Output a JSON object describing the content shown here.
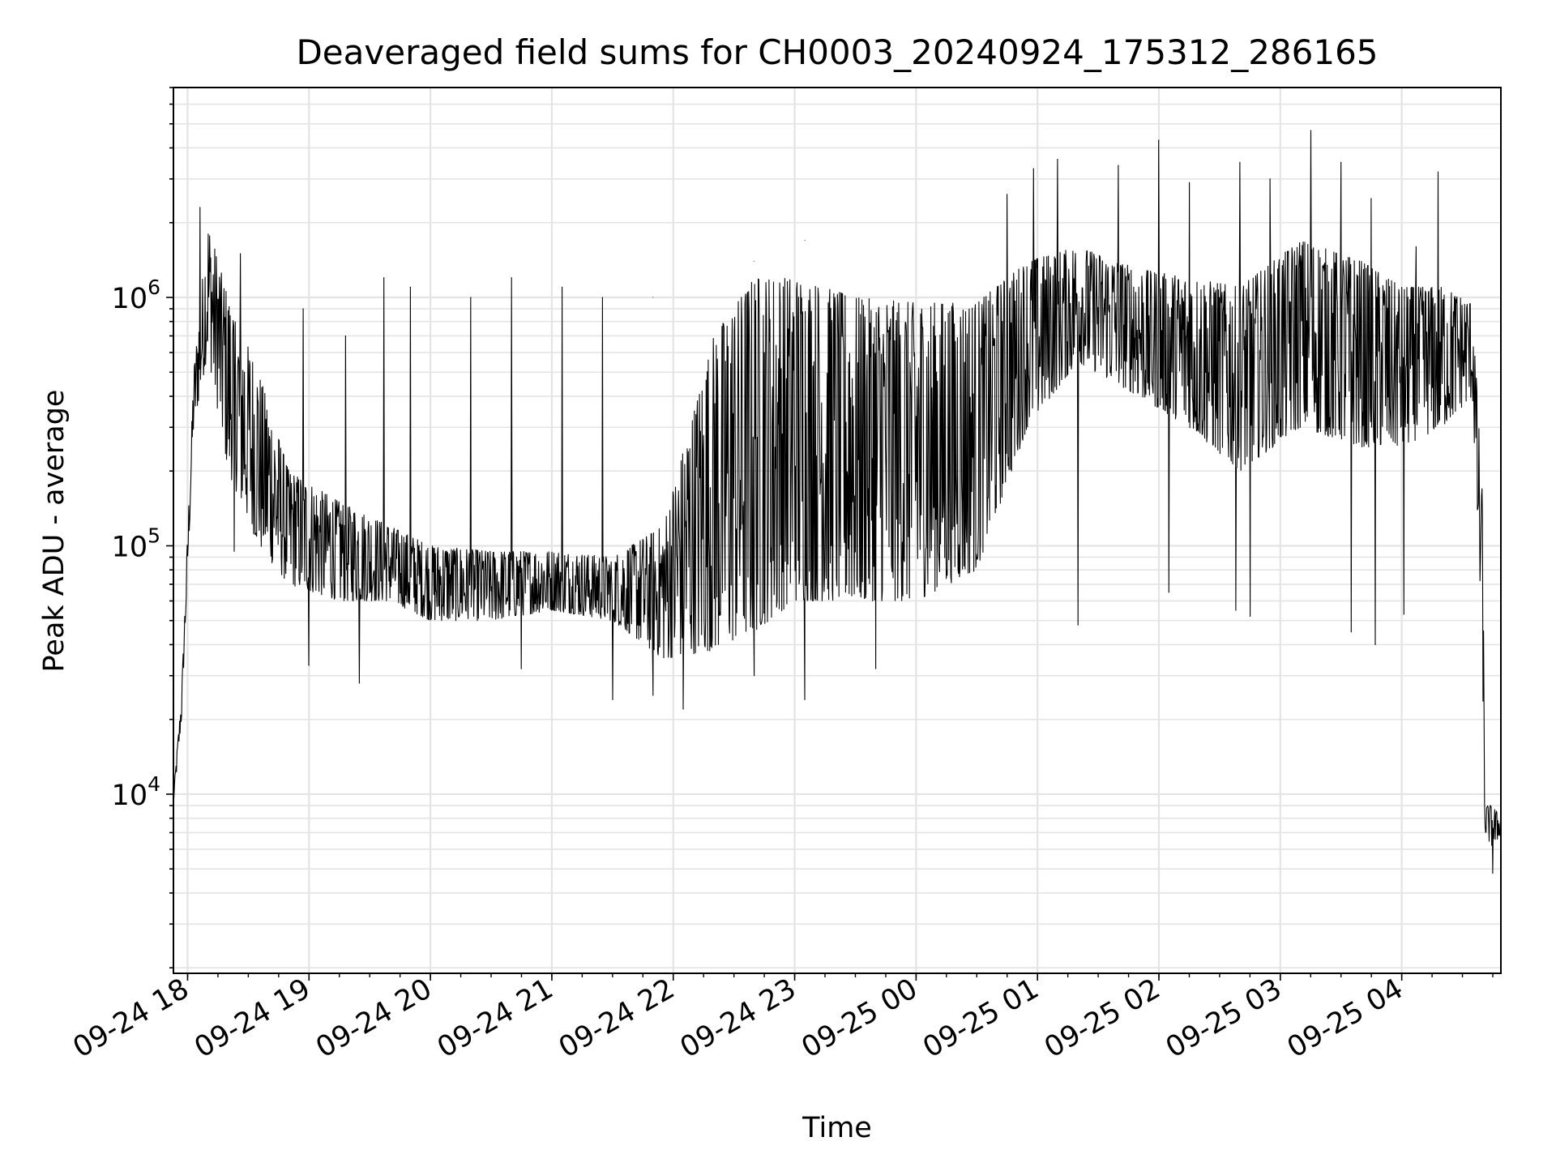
{
  "chart_data": {
    "type": "line",
    "title": "Deaveraged field sums for CH0003_20240924_175312_286165",
    "xlabel": "Time",
    "ylabel": "Peak ADU - average",
    "yscale": "log",
    "grid": true,
    "grid_color": "#e4e4e4",
    "line_color": "#000000",
    "xlim": [
      "2024-09-24 17:53",
      "2024-09-25 04:49"
    ],
    "ylim": [
      1900,
      7000000
    ],
    "x_ticks": [
      "09-24 18",
      "09-24 19",
      "09-24 20",
      "09-24 21",
      "09-24 22",
      "09-24 23",
      "09-25 00",
      "09-25 01",
      "09-25 02",
      "09-25 03",
      "09-25 04"
    ],
    "x_tick_times": [
      "2024-09-24 18:00",
      "2024-09-24 19:00",
      "2024-09-24 20:00",
      "2024-09-24 21:00",
      "2024-09-24 22:00",
      "2024-09-24 23:00",
      "2024-09-25 00:00",
      "2024-09-25 01:00",
      "2024-09-25 02:00",
      "2024-09-25 03:00",
      "2024-09-25 04:00"
    ],
    "y_ticks": [
      {
        "value": 10000,
        "base": "10",
        "exp": "4"
      },
      {
        "value": 100000,
        "base": "10",
        "exp": "5"
      },
      {
        "value": 1000000,
        "base": "10",
        "exp": "6"
      }
    ],
    "envelope": {
      "x": [
        "2024-09-24 17:53",
        "2024-09-24 17:57",
        "2024-09-24 18:03",
        "2024-09-24 18:10",
        "2024-09-24 18:20",
        "2024-09-24 18:35",
        "2024-09-24 18:50",
        "2024-09-24 19:15",
        "2024-09-24 19:40",
        "2024-09-24 20:00",
        "2024-09-24 20:30",
        "2024-09-24 21:00",
        "2024-09-24 21:30",
        "2024-09-24 21:55",
        "2024-09-24 22:20",
        "2024-09-24 22:40",
        "2024-09-24 23:00",
        "2024-09-24 23:30",
        "2024-09-25 00:00",
        "2024-09-25 00:30",
        "2024-09-25 00:55",
        "2024-09-25 01:20",
        "2024-09-25 01:50",
        "2024-09-25 02:15",
        "2024-09-25 02:40",
        "2024-09-25 03:10",
        "2024-09-25 03:40",
        "2024-09-25 04:00",
        "2024-09-25 04:20",
        "2024-09-25 04:35",
        "2024-09-25 04:40",
        "2024-09-25 04:41",
        "2024-09-25 04:45",
        "2024-09-25 04:49"
      ],
      "low": [
        9000,
        20000,
        300000,
        600000,
        200000,
        100000,
        70000,
        60000,
        60000,
        50000,
        50000,
        55000,
        50000,
        35000,
        38000,
        45000,
        60000,
        60000,
        60000,
        80000,
        300000,
        550000,
        400000,
        300000,
        200000,
        300000,
        250000,
        250000,
        300000,
        400000,
        30000,
        7000,
        6000,
        7000
      ],
      "high": [
        10000,
        25000,
        500000,
        2000000,
        1000000,
        500000,
        200000,
        150000,
        120000,
        100000,
        95000,
        95000,
        90000,
        120000,
        700000,
        1200000,
        1200000,
        1000000,
        950000,
        950000,
        1400000,
        1600000,
        1300000,
        1200000,
        1100000,
        1700000,
        1400000,
        1100000,
        1100000,
        950000,
        150000,
        9000,
        9000,
        8000
      ]
    },
    "spikes": [
      {
        "x": "2024-09-24 18:06",
        "y": 2300000
      },
      {
        "x": "2024-09-24 18:26",
        "y": 1500000
      },
      {
        "x": "2024-09-24 18:57",
        "y": 900000
      },
      {
        "x": "2024-09-24 19:18",
        "y": 700000
      },
      {
        "x": "2024-09-24 19:37",
        "y": 1200000
      },
      {
        "x": "2024-09-24 19:50",
        "y": 1100000
      },
      {
        "x": "2024-09-24 20:20",
        "y": 1000000
      },
      {
        "x": "2024-09-24 20:40",
        "y": 1200000
      },
      {
        "x": "2024-09-24 21:05",
        "y": 1100000
      },
      {
        "x": "2024-09-24 21:25",
        "y": 1000000
      },
      {
        "x": "2024-09-24 21:50",
        "y": 1000000
      },
      {
        "x": "2024-09-24 22:40",
        "y": 1400000
      },
      {
        "x": "2024-09-24 23:05",
        "y": 1700000
      },
      {
        "x": "2024-09-25 00:45",
        "y": 2600000
      },
      {
        "x": "2024-09-25 00:58",
        "y": 3300000
      },
      {
        "x": "2024-09-25 01:10",
        "y": 3600000
      },
      {
        "x": "2024-09-25 01:40",
        "y": 3400000
      },
      {
        "x": "2024-09-25 02:00",
        "y": 4300000
      },
      {
        "x": "2024-09-25 02:15",
        "y": 2900000
      },
      {
        "x": "2024-09-25 02:40",
        "y": 3500000
      },
      {
        "x": "2024-09-25 02:55",
        "y": 3000000
      },
      {
        "x": "2024-09-25 03:15",
        "y": 4700000
      },
      {
        "x": "2024-09-25 03:30",
        "y": 3500000
      },
      {
        "x": "2024-09-25 03:45",
        "y": 2500000
      },
      {
        "x": "2024-09-25 04:07",
        "y": 1600000
      },
      {
        "x": "2024-09-25 04:18",
        "y": 3200000
      }
    ],
    "dips": [
      {
        "x": "2024-09-24 18:23",
        "y": 95000
      },
      {
        "x": "2024-09-24 19:00",
        "y": 33000
      },
      {
        "x": "2024-09-24 19:25",
        "y": 28000
      },
      {
        "x": "2024-09-24 20:45",
        "y": 32000
      },
      {
        "x": "2024-09-24 21:30",
        "y": 24000
      },
      {
        "x": "2024-09-24 21:50",
        "y": 25000
      },
      {
        "x": "2024-09-24 22:05",
        "y": 22000
      },
      {
        "x": "2024-09-24 22:40",
        "y": 30000
      },
      {
        "x": "2024-09-24 23:05",
        "y": 24000
      },
      {
        "x": "2024-09-24 23:40",
        "y": 32000
      },
      {
        "x": "2024-09-25 01:20",
        "y": 48000
      },
      {
        "x": "2024-09-25 02:05",
        "y": 65000
      },
      {
        "x": "2024-09-25 02:38",
        "y": 55000
      },
      {
        "x": "2024-09-25 02:45",
        "y": 52000
      },
      {
        "x": "2024-09-25 03:35",
        "y": 45000
      },
      {
        "x": "2024-09-25 03:47",
        "y": 40000
      },
      {
        "x": "2024-09-25 04:01",
        "y": 53000
      },
      {
        "x": "2024-09-25 04:45",
        "y": 4800
      }
    ]
  }
}
